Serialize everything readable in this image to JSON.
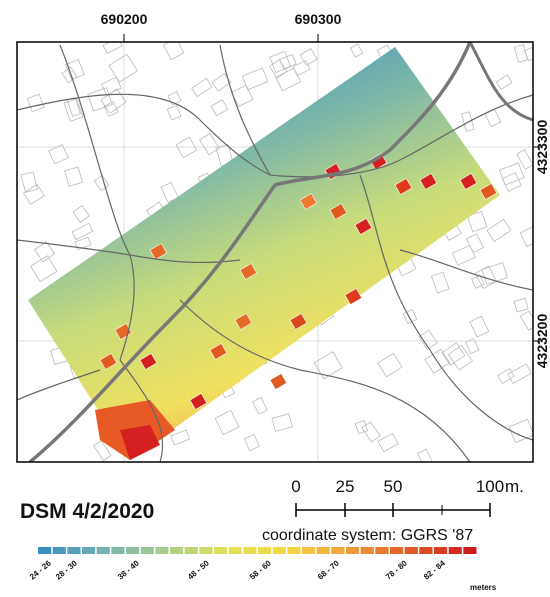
{
  "map": {
    "grid_labels": {
      "x": [
        "690200",
        "690300"
      ],
      "y": [
        "4323300",
        "4323200"
      ]
    },
    "title": "DSM 4/2/2020",
    "scale_bar": {
      "ticks": [
        "0",
        "25",
        "50",
        "100"
      ],
      "unit": "m."
    },
    "coordinate_system": "coordinate system: GGRS '87",
    "legend": {
      "labels": [
        "24 - 26",
        "28 - 30",
        "38 - 40",
        "48 - 50",
        "58 - 60",
        "68 - 70",
        "78 - 80",
        "82 - 84"
      ],
      "unit": "meters"
    }
  }
}
